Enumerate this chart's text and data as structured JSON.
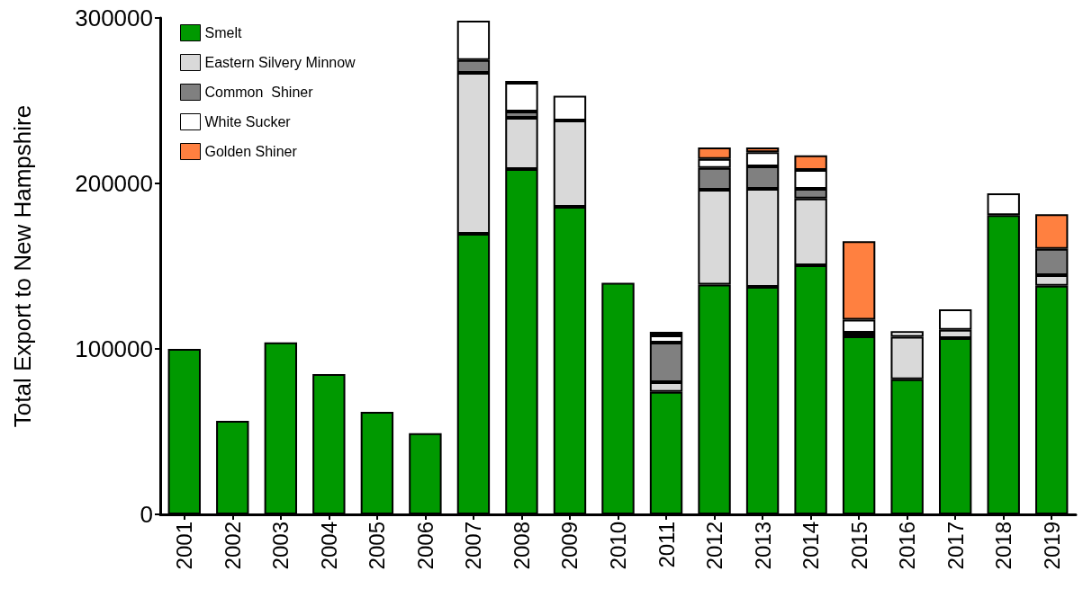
{
  "chart_data": {
    "type": "bar",
    "stacked": true,
    "ylabel": "Total Export to New Hampshire",
    "categories": [
      "2001",
      "2002",
      "2003",
      "2004",
      "2005",
      "2006",
      "2007",
      "2008",
      "2009",
      "2010",
      "2011",
      "2012",
      "2013",
      "2014",
      "2015",
      "2016",
      "2017",
      "2018",
      "2019"
    ],
    "series": [
      {
        "name": "Smelt",
        "color": "#009900",
        "values": [
          100000,
          56500,
          104000,
          84800,
          62000,
          49000,
          169600,
          208700,
          185900,
          140000,
          74100,
          138800,
          137500,
          150500,
          107600,
          81700,
          106500,
          180800,
          138200
        ]
      },
      {
        "name": "Eastern Silvery Minnow",
        "color": "#d9d9d9",
        "values": [
          null,
          null,
          null,
          null,
          null,
          null,
          97200,
          31000,
          52100,
          null,
          5800,
          57400,
          59200,
          40400,
          null,
          25700,
          5100,
          null,
          6400
        ]
      },
      {
        "name": "Common  Shiner",
        "color": "#808080",
        "values": [
          null,
          null,
          null,
          null,
          null,
          null,
          7800,
          3800,
          null,
          null,
          23900,
          13200,
          13600,
          5800,
          2200,
          null,
          null,
          null,
          15900
        ]
      },
      {
        "name": "White Sucker",
        "color": "#ffffff",
        "values": [
          null,
          null,
          null,
          null,
          null,
          null,
          23800,
          17400,
          15000,
          null,
          4400,
          5400,
          8600,
          11400,
          7800,
          3300,
          12300,
          13200,
          null
        ]
      },
      {
        "name": "Golden Shiner",
        "color": "#ff8040",
        "values": [
          null,
          null,
          null,
          null,
          null,
          null,
          null,
          1100,
          null,
          null,
          2100,
          6900,
          2800,
          8900,
          47500,
          null,
          null,
          null,
          20900
        ]
      }
    ],
    "ylim": [
      0,
      300000
    ],
    "yticks": [
      0,
      100000,
      200000,
      300000
    ],
    "grid": false,
    "legend": "top left"
  }
}
